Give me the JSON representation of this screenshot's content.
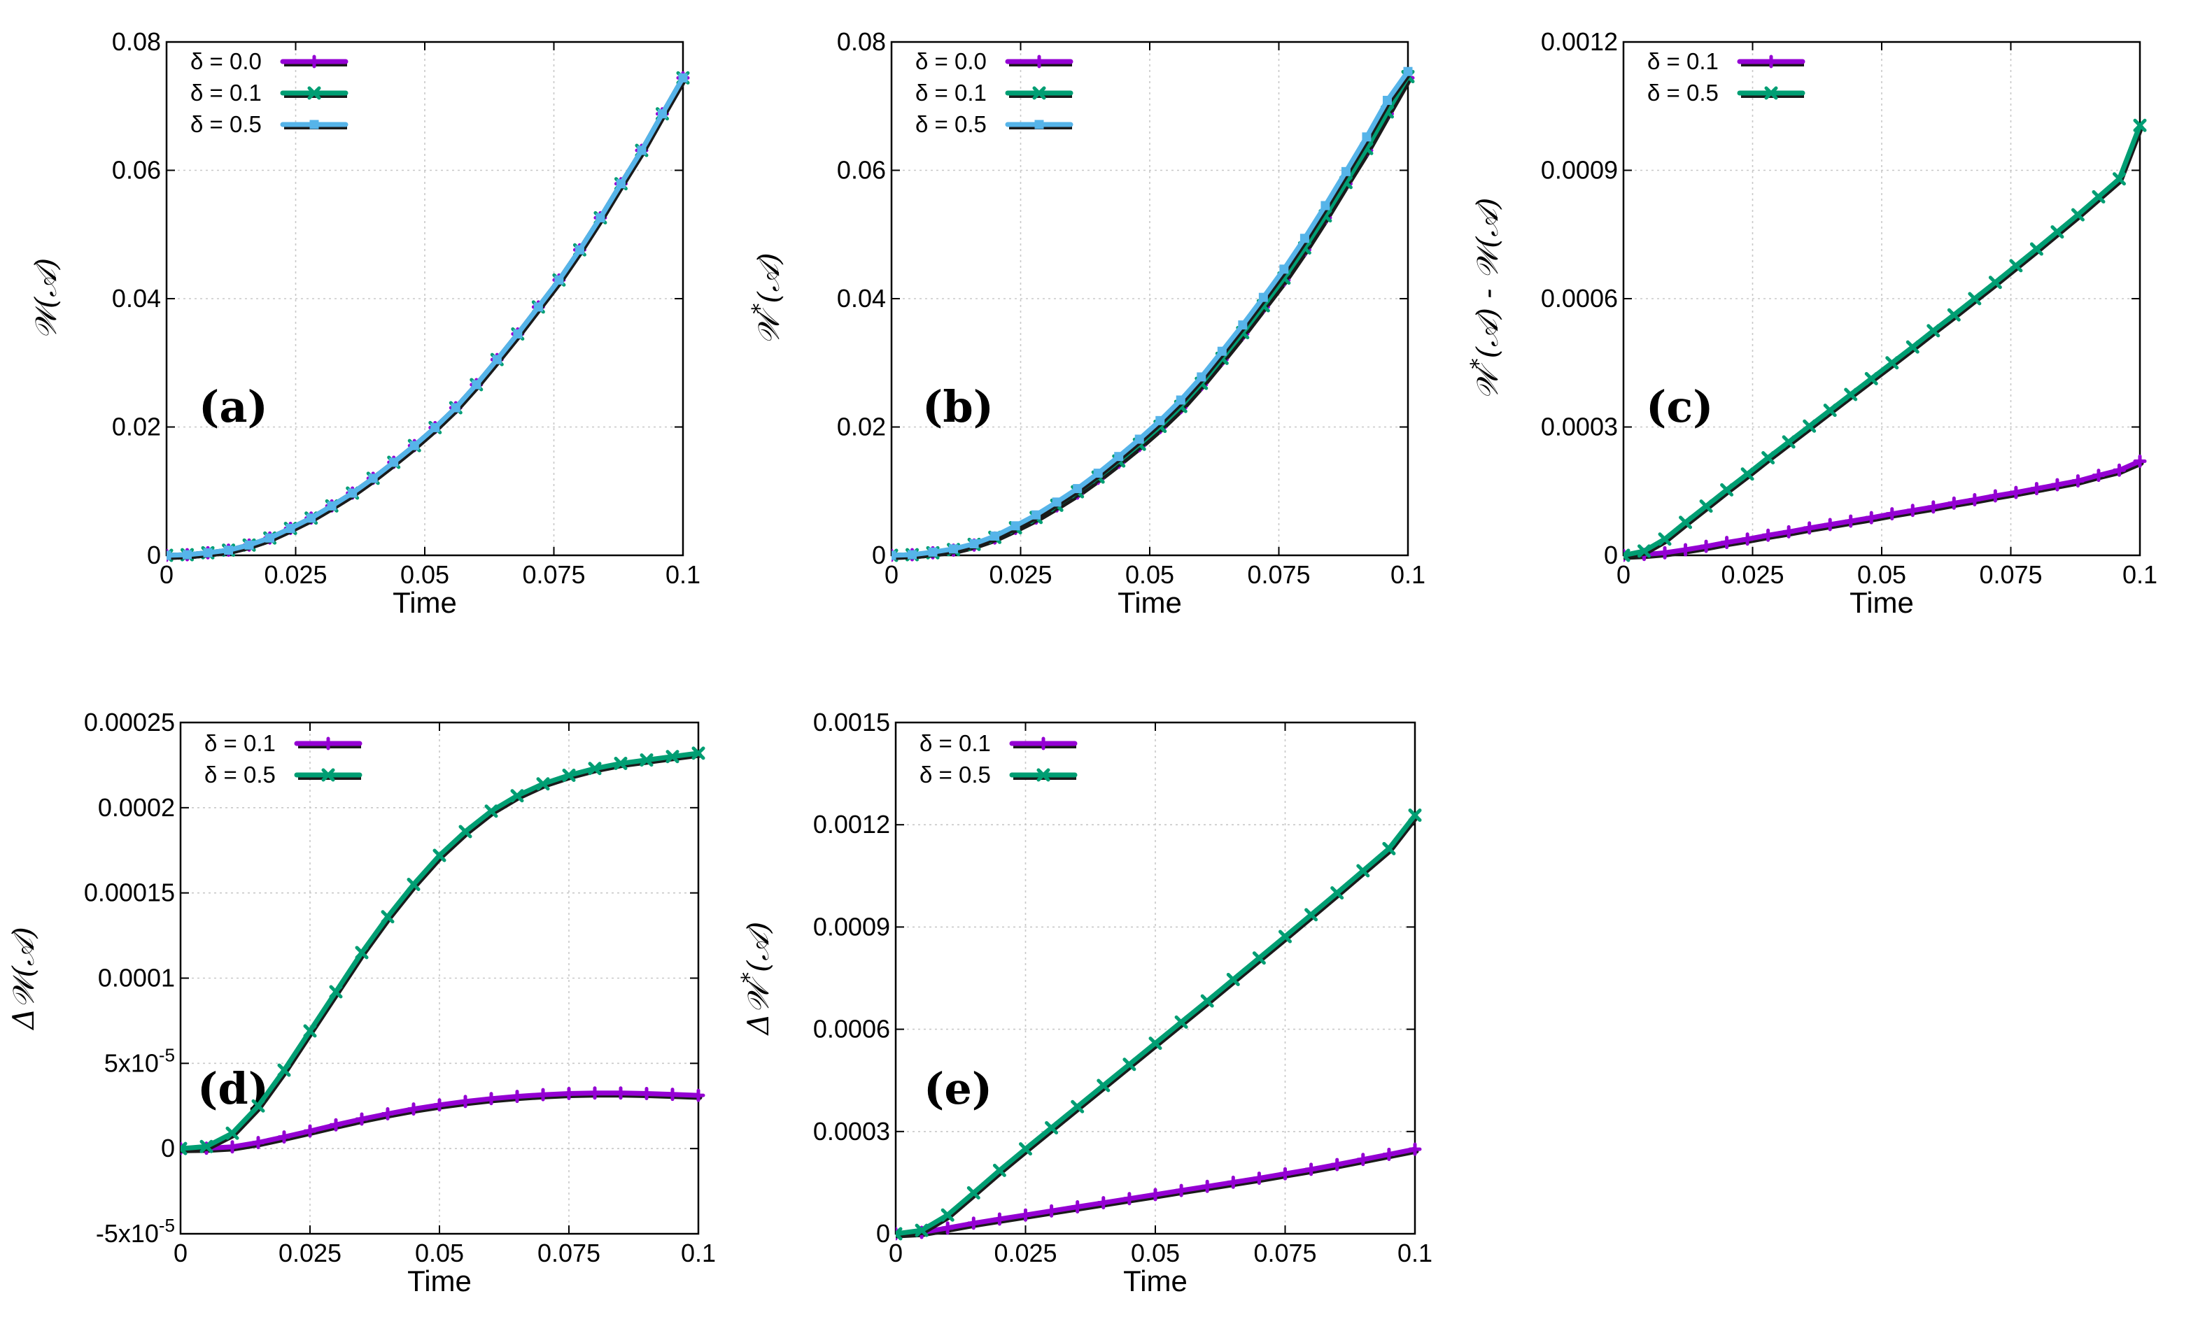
{
  "colors": {
    "purple": "#9400d3",
    "green": "#009e73",
    "blue": "#56b4e9",
    "shadow": "#1a1a1a"
  },
  "chart_data": [
    {
      "panel": "(a)",
      "type": "line",
      "xlabel": "Time",
      "ylabel": "𝒲(𝒜)",
      "xlim": [
        0,
        0.1
      ],
      "ylim": [
        0,
        0.08
      ],
      "xticks": [
        "0",
        "0.025",
        "0.05",
        "0.075",
        "0.1"
      ],
      "yticks": [
        "0",
        "0.02",
        "0.04",
        "0.06",
        "0.08"
      ],
      "legend_position": "top-left",
      "series": [
        {
          "name": "δ = 0.0",
          "color": "#9400d3",
          "marker": "cross",
          "x": [
            0,
            0.004,
            0.008,
            0.012,
            0.016,
            0.02,
            0.024,
            0.028,
            0.032,
            0.036,
            0.04,
            0.044,
            0.048,
            0.052,
            0.056,
            0.06,
            0.064,
            0.068,
            0.072,
            0.076,
            0.08,
            0.084,
            0.088,
            0.092,
            0.096,
            0.1
          ],
          "y": [
            0,
            0.0001,
            0.0004,
            0.0008,
            0.0016,
            0.0027,
            0.0042,
            0.0058,
            0.0077,
            0.0097,
            0.012,
            0.0145,
            0.0171,
            0.0199,
            0.023,
            0.0266,
            0.0305,
            0.0345,
            0.0387,
            0.0429,
            0.0476,
            0.0526,
            0.0579,
            0.0631,
            0.0688,
            0.0744
          ]
        },
        {
          "name": "δ = 0.1",
          "color": "#009e73",
          "marker": "x",
          "x": [
            0,
            0.004,
            0.008,
            0.012,
            0.016,
            0.02,
            0.024,
            0.028,
            0.032,
            0.036,
            0.04,
            0.044,
            0.048,
            0.052,
            0.056,
            0.06,
            0.064,
            0.068,
            0.072,
            0.076,
            0.08,
            0.084,
            0.088,
            0.092,
            0.096,
            0.1
          ],
          "y": [
            0,
            0.0001,
            0.0004,
            0.0008,
            0.0016,
            0.0027,
            0.0042,
            0.0058,
            0.0077,
            0.0097,
            0.012,
            0.0145,
            0.0171,
            0.0199,
            0.023,
            0.0266,
            0.0305,
            0.0345,
            0.0387,
            0.0429,
            0.0476,
            0.0526,
            0.0579,
            0.0631,
            0.0688,
            0.0744
          ]
        },
        {
          "name": "δ = 0.5",
          "color": "#56b4e9",
          "marker": "square",
          "x": [
            0,
            0.004,
            0.008,
            0.012,
            0.016,
            0.02,
            0.024,
            0.028,
            0.032,
            0.036,
            0.04,
            0.044,
            0.048,
            0.052,
            0.056,
            0.06,
            0.064,
            0.068,
            0.072,
            0.076,
            0.08,
            0.084,
            0.088,
            0.092,
            0.096,
            0.1
          ],
          "y": [
            0,
            0.0001,
            0.0004,
            0.0008,
            0.0016,
            0.0027,
            0.0042,
            0.0058,
            0.0077,
            0.0097,
            0.012,
            0.0145,
            0.0171,
            0.0199,
            0.023,
            0.0266,
            0.0305,
            0.0345,
            0.0387,
            0.0429,
            0.0476,
            0.0526,
            0.0579,
            0.0631,
            0.0688,
            0.0744
          ]
        }
      ]
    },
    {
      "panel": "(b)",
      "type": "line",
      "xlabel": "Time",
      "ylabel": "𝒲*(𝒜)",
      "xlim": [
        0,
        0.1
      ],
      "ylim": [
        0,
        0.08
      ],
      "xticks": [
        "0",
        "0.025",
        "0.05",
        "0.075",
        "0.1"
      ],
      "yticks": [
        "0",
        "0.02",
        "0.04",
        "0.06",
        "0.08"
      ],
      "legend_position": "top-left",
      "series": [
        {
          "name": "δ = 0.0",
          "color": "#9400d3",
          "marker": "cross",
          "x": [
            0,
            0.004,
            0.008,
            0.012,
            0.016,
            0.02,
            0.024,
            0.028,
            0.032,
            0.036,
            0.04,
            0.044,
            0.048,
            0.052,
            0.056,
            0.06,
            0.064,
            0.068,
            0.072,
            0.076,
            0.08,
            0.084,
            0.088,
            0.092,
            0.096,
            0.1
          ],
          "y": [
            0,
            0.0001,
            0.0004,
            0.0008,
            0.0016,
            0.0027,
            0.0042,
            0.0058,
            0.0077,
            0.0097,
            0.012,
            0.0145,
            0.0171,
            0.0199,
            0.023,
            0.0266,
            0.0305,
            0.0345,
            0.0387,
            0.0429,
            0.0476,
            0.0526,
            0.0579,
            0.0631,
            0.0688,
            0.0744
          ]
        },
        {
          "name": "δ = 0.1",
          "color": "#009e73",
          "marker": "x",
          "x": [
            0,
            0.004,
            0.008,
            0.012,
            0.016,
            0.02,
            0.024,
            0.028,
            0.032,
            0.036,
            0.04,
            0.044,
            0.048,
            0.052,
            0.056,
            0.06,
            0.064,
            0.068,
            0.072,
            0.076,
            0.08,
            0.084,
            0.088,
            0.092,
            0.096,
            0.1
          ],
          "y": [
            0,
            0.0001,
            0.0004,
            0.0009,
            0.0017,
            0.0028,
            0.0043,
            0.0059,
            0.0078,
            0.0099,
            0.0122,
            0.0147,
            0.0173,
            0.0201,
            0.0232,
            0.0268,
            0.0307,
            0.0347,
            0.0389,
            0.0432,
            0.0479,
            0.0529,
            0.0581,
            0.0634,
            0.0691,
            0.0746
          ]
        },
        {
          "name": "δ = 0.5",
          "color": "#56b4e9",
          "marker": "square",
          "x": [
            0,
            0.004,
            0.008,
            0.012,
            0.016,
            0.02,
            0.024,
            0.028,
            0.032,
            0.036,
            0.04,
            0.044,
            0.048,
            0.052,
            0.056,
            0.06,
            0.064,
            0.068,
            0.072,
            0.076,
            0.08,
            0.084,
            0.088,
            0.092,
            0.096,
            0.1
          ],
          "y": [
            0,
            0.0001,
            0.0005,
            0.001,
            0.0018,
            0.003,
            0.0046,
            0.0063,
            0.0083,
            0.0104,
            0.0128,
            0.0154,
            0.0181,
            0.021,
            0.0242,
            0.0278,
            0.0318,
            0.0359,
            0.0402,
            0.0446,
            0.0494,
            0.0545,
            0.0598,
            0.0652,
            0.0709,
            0.0754
          ]
        }
      ]
    },
    {
      "panel": "(c)",
      "type": "line",
      "xlabel": "Time",
      "ylabel": "𝒲*(𝒜) - 𝒲(𝒜)",
      "xlim": [
        0,
        0.1
      ],
      "ylim": [
        0,
        0.0012
      ],
      "xticks": [
        "0",
        "0.025",
        "0.05",
        "0.075",
        "0.1"
      ],
      "yticks": [
        "0",
        "0.0003",
        "0.0006",
        "0.0009",
        "0.0012"
      ],
      "legend_position": "top-left",
      "series": [
        {
          "name": "δ = 0.1",
          "color": "#9400d3",
          "marker": "cross",
          "x": [
            0,
            0.004,
            0.008,
            0.012,
            0.016,
            0.02,
            0.024,
            0.028,
            0.032,
            0.036,
            0.04,
            0.044,
            0.048,
            0.052,
            0.056,
            0.06,
            0.064,
            0.068,
            0.072,
            0.076,
            0.08,
            0.084,
            0.088,
            0.092,
            0.096,
            0.1
          ],
          "y": [
            0,
            2e-06,
            6e-06,
            1.3e-05,
            2.1e-05,
            3e-05,
            3.8e-05,
            4.7e-05,
            5.5e-05,
            6.4e-05,
            7.2e-05,
            8e-05,
            8.8e-05,
            9.7e-05,
            0.000105,
            0.000113,
            0.000122,
            0.00013,
            0.000139,
            0.000147,
            0.000156,
            0.000165,
            0.000174,
            0.000187,
            0.000199,
            0.00022
          ]
        },
        {
          "name": "δ = 0.5",
          "color": "#009e73",
          "marker": "x",
          "x": [
            0,
            0.004,
            0.008,
            0.012,
            0.016,
            0.02,
            0.024,
            0.028,
            0.032,
            0.036,
            0.04,
            0.044,
            0.048,
            0.052,
            0.056,
            0.06,
            0.064,
            0.068,
            0.072,
            0.076,
            0.08,
            0.084,
            0.088,
            0.092,
            0.096,
            0.1
          ],
          "y": [
            0,
            1e-05,
            3.8e-05,
            7.7e-05,
            0.000115,
            0.000153,
            0.00019,
            0.000228,
            0.000265,
            0.000302,
            0.000339,
            0.000376,
            0.000413,
            0.00045,
            0.000487,
            0.000525,
            0.000562,
            0.0006,
            0.000638,
            0.000677,
            0.000716,
            0.000756,
            0.000796,
            0.000838,
            0.00088,
            0.001005
          ]
        }
      ]
    },
    {
      "panel": "(d)",
      "type": "line",
      "xlabel": "Time",
      "ylabel": "Δ𝒲(𝒜)",
      "xlim": [
        0,
        0.1
      ],
      "ylim": [
        -5e-05,
        0.00025
      ],
      "xticks": [
        "0",
        "0.025",
        "0.05",
        "0.075",
        "0.1"
      ],
      "yticks": [
        "-5x10-5",
        "0",
        "5x10-5",
        "0.0001",
        "0.00015",
        "0.0002",
        "0.00025"
      ],
      "legend_position": "top-left",
      "series": [
        {
          "name": "δ = 0.1",
          "color": "#9400d3",
          "marker": "cross",
          "x": [
            0,
            0.005,
            0.01,
            0.015,
            0.02,
            0.025,
            0.03,
            0.035,
            0.04,
            0.045,
            0.05,
            0.055,
            0.06,
            0.065,
            0.07,
            0.075,
            0.08,
            0.085,
            0.09,
            0.095,
            0.1
          ],
          "y": [
            0,
            2e-07,
            1e-06,
            3.5e-06,
            6.8e-06,
            1.03e-05,
            1.39e-05,
            1.73e-05,
            2.04e-05,
            2.32e-05,
            2.56e-05,
            2.76e-05,
            2.93e-05,
            3.06e-05,
            3.16e-05,
            3.23e-05,
            3.26e-05,
            3.26e-05,
            3.23e-05,
            3.18e-05,
            3.12e-05
          ]
        },
        {
          "name": "δ = 0.5",
          "color": "#009e73",
          "marker": "x",
          "x": [
            0,
            0.005,
            0.01,
            0.015,
            0.02,
            0.025,
            0.03,
            0.035,
            0.04,
            0.045,
            0.05,
            0.055,
            0.06,
            0.065,
            0.07,
            0.075,
            0.08,
            0.085,
            0.09,
            0.095,
            0.1
          ],
          "y": [
            0,
            1.2e-06,
            9e-06,
            2.5e-05,
            4.6e-05,
            6.9e-05,
            9.2e-05,
            0.000115,
            0.000136,
            0.000155,
            0.000172,
            0.000186,
            0.000198,
            0.000207,
            0.000214,
            0.000219,
            0.000223,
            0.000226,
            0.000228,
            0.00023,
            0.000232
          ]
        }
      ]
    },
    {
      "panel": "(e)",
      "type": "line",
      "xlabel": "Time",
      "ylabel": "Δ𝒲*(𝒜)",
      "xlim": [
        0,
        0.1
      ],
      "ylim": [
        0,
        0.0015
      ],
      "xticks": [
        "0",
        "0.025",
        "0.05",
        "0.075",
        "0.1"
      ],
      "yticks": [
        "0",
        "0.0003",
        "0.0006",
        "0.0009",
        "0.0012",
        "0.0015"
      ],
      "legend_position": "top-left",
      "series": [
        {
          "name": "δ = 0.1",
          "color": "#9400d3",
          "marker": "cross",
          "x": [
            0,
            0.005,
            0.01,
            0.015,
            0.02,
            0.025,
            0.03,
            0.035,
            0.04,
            0.045,
            0.05,
            0.055,
            0.06,
            0.065,
            0.07,
            0.075,
            0.08,
            0.085,
            0.09,
            0.095,
            0.1
          ],
          "y": [
            0,
            4e-06,
            1.7e-05,
            3.1e-05,
            4.3e-05,
            5.5e-05,
            6.7e-05,
            7.9e-05,
            9.1e-05,
            0.000103,
            0.000115,
            0.000127,
            0.000139,
            0.000151,
            0.000163,
            0.000176,
            0.000189,
            0.000203,
            0.000218,
            0.000233,
            0.000248
          ]
        },
        {
          "name": "δ = 0.5",
          "color": "#009e73",
          "marker": "x",
          "x": [
            0,
            0.005,
            0.01,
            0.015,
            0.02,
            0.025,
            0.03,
            0.035,
            0.04,
            0.045,
            0.05,
            0.055,
            0.06,
            0.065,
            0.07,
            0.075,
            0.08,
            0.085,
            0.09,
            0.095,
            0.1
          ],
          "y": [
            0,
            1e-05,
            5.5e-05,
            0.00012,
            0.000186,
            0.000249,
            0.000311,
            0.000373,
            0.000435,
            0.000497,
            0.000559,
            0.000621,
            0.000683,
            0.000746,
            0.000809,
            0.000872,
            0.000936,
            0.001,
            0.001065,
            0.00113,
            0.001228
          ]
        }
      ]
    }
  ]
}
